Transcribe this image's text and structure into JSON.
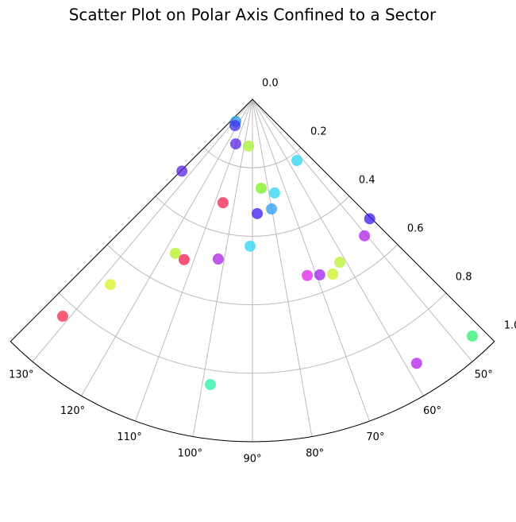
{
  "chart_data": {
    "type": "scatter",
    "polar": true,
    "title": "Scatter Plot on Polar Axis Confined to a Sector",
    "x": [
      126.9,
      123.7,
      110.6,
      94.8,
      134.5,
      54.0,
      84.4,
      76.7,
      105.9,
      87.6,
      80.1,
      45.5,
      50.6,
      90.9,
      116.6,
      113.1,
      102.1,
      61.8,
      72.7,
      69.0,
      65.3,
      127.5,
      131.2,
      47.1,
      58.1,
      98.4
    ],
    "y": [
      0.081,
      0.092,
      0.139,
      0.137,
      0.294,
      0.221,
      0.261,
      0.281,
      0.314,
      0.334,
      0.325,
      0.489,
      0.516,
      0.429,
      0.503,
      0.509,
      0.477,
      0.54,
      0.539,
      0.549,
      0.562,
      0.682,
      0.842,
      0.944,
      0.908,
      0.842
    ],
    "colors": [
      "#2a9af0",
      "#3a2ee8",
      "#5a22e0",
      "#a8f030",
      "#5a22e0",
      "#2ad4f0",
      "#78f020",
      "#2ad4f0",
      "#f0204e",
      "#3a18e8",
      "#2a9af0",
      "#3a18e8",
      "#b020e8",
      "#2ad4f0",
      "#b0f020",
      "#f01c48",
      "#a820e0",
      "#b8f030",
      "#e020e8",
      "#a020e8",
      "#c8f020",
      "#d8f020",
      "#f0284e",
      "#28f070",
      "#b020e8",
      "#28f0a8"
    ],
    "xlim": [
      45,
      135
    ],
    "ylim": [
      0,
      1
    ],
    "xticks": [
      {
        "value": 50,
        "label": "50°"
      },
      {
        "value": 60,
        "label": "60°"
      },
      {
        "value": 70,
        "label": "70°"
      },
      {
        "value": 80,
        "label": "80°"
      },
      {
        "value": 90,
        "label": "90°"
      },
      {
        "value": 100,
        "label": "100°"
      },
      {
        "value": 110,
        "label": "110°"
      },
      {
        "value": 120,
        "label": "120°"
      },
      {
        "value": 130,
        "label": "130°"
      }
    ],
    "yticks": [
      {
        "value": 0,
        "label": "0.0"
      },
      {
        "value": 0.2,
        "label": "0.2"
      },
      {
        "value": 0.4,
        "label": "0.4"
      },
      {
        "value": 0.6,
        "label": "0.6"
      },
      {
        "value": 0.8,
        "label": "0.8"
      },
      {
        "value": 1,
        "label": "1.0"
      }
    ],
    "grid": true
  }
}
